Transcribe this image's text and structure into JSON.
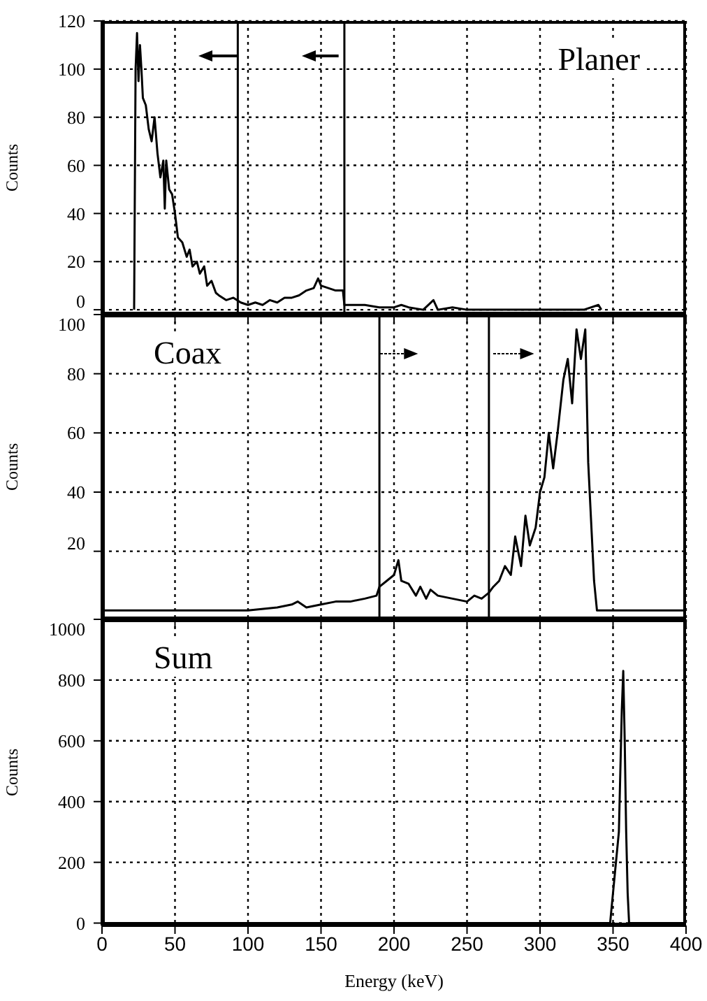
{
  "chart_data": [
    {
      "type": "line",
      "title": "Planer",
      "ylabel": "Counts",
      "xlim": [
        0,
        400
      ],
      "xticks": [
        0,
        50,
        100,
        150,
        200,
        250,
        300,
        350,
        400
      ],
      "ylim": [
        -2,
        120
      ],
      "yticks": [
        0,
        20,
        40,
        60,
        80,
        100,
        120
      ],
      "grid": true,
      "tick_labels": "y",
      "line_style": "solid",
      "marker": "none",
      "series": [
        {
          "color": "#000000",
          "x": [
            22,
            23,
            24,
            25,
            26,
            27,
            28,
            30,
            32,
            34,
            36,
            38,
            40,
            42,
            43,
            44,
            46,
            48,
            50,
            52,
            55,
            58,
            60,
            62,
            65,
            67,
            70,
            72,
            75,
            78,
            80,
            85,
            90,
            95,
            100,
            105,
            110,
            115,
            120,
            125,
            130,
            135,
            140,
            145,
            148,
            150,
            155,
            160,
            165,
            166,
            170,
            180,
            190,
            200,
            205,
            210,
            220,
            227,
            230,
            240,
            250,
            300,
            330,
            340,
            342
          ],
          "values": [
            0,
            100,
            115,
            95,
            110,
            100,
            88,
            85,
            75,
            70,
            80,
            65,
            55,
            62,
            42,
            62,
            50,
            48,
            40,
            30,
            28,
            22,
            25,
            18,
            20,
            15,
            18,
            10,
            12,
            7,
            6,
            4,
            5,
            3,
            2,
            3,
            2,
            4,
            3,
            5,
            5,
            6,
            8,
            9,
            13,
            10,
            9,
            8,
            8,
            2,
            2,
            2,
            1,
            1,
            2,
            1,
            0,
            4,
            0,
            1,
            0,
            0,
            0,
            2,
            0
          ]
        }
      ],
      "ref_lines": [
        {
          "axis": "x",
          "value": 93,
          "color": "#000000"
        },
        {
          "axis": "x",
          "value": 166,
          "color": "#000000"
        }
      ]
    },
    {
      "type": "line",
      "title": "Coax",
      "ylabel": "Counts",
      "xlim": [
        0,
        400
      ],
      "xticks": [
        0,
        50,
        100,
        150,
        200,
        250,
        300,
        350,
        400
      ],
      "ylim": [
        -3,
        100
      ],
      "yticks": [
        20,
        40,
        60,
        80,
        100
      ],
      "grid": true,
      "tick_labels": "y",
      "line_style": "solid",
      "marker": "none",
      "series": [
        {
          "color": "#000000",
          "x": [
            0,
            50,
            100,
            120,
            130,
            134,
            140,
            150,
            160,
            170,
            180,
            188,
            190,
            195,
            200,
            203,
            205,
            210,
            215,
            218,
            222,
            225,
            230,
            240,
            250,
            255,
            260,
            265,
            268,
            272,
            276,
            280,
            283,
            287,
            290,
            293,
            297,
            300,
            303,
            306,
            309,
            312,
            316,
            319,
            322,
            325,
            328,
            331,
            333,
            337,
            339,
            400
          ],
          "values": [
            0,
            0,
            0,
            1,
            2,
            3,
            1,
            2,
            3,
            3,
            4,
            5,
            8,
            10,
            12,
            17,
            10,
            9,
            5,
            8,
            4,
            7,
            5,
            4,
            3,
            5,
            4,
            6,
            8,
            10,
            15,
            12,
            25,
            15,
            32,
            22,
            28,
            40,
            45,
            60,
            48,
            60,
            78,
            85,
            70,
            95,
            85,
            95,
            50,
            10,
            0,
            0
          ]
        }
      ],
      "ref_lines": [
        {
          "axis": "x",
          "value": 190,
          "color": "#000000"
        },
        {
          "axis": "x",
          "value": 265,
          "color": "#000000"
        }
      ]
    },
    {
      "type": "line",
      "title": "Sum",
      "xlabel": "Energy (keV)",
      "ylabel": "Counts",
      "xlim": [
        0,
        400
      ],
      "xticks": [
        0,
        50,
        100,
        150,
        200,
        250,
        300,
        350,
        400
      ],
      "ylim": [
        -8,
        1000
      ],
      "yticks": [
        0,
        200,
        400,
        600,
        800,
        1000
      ],
      "grid": true,
      "line_style": "solid",
      "marker": "none",
      "series": [
        {
          "color": "#000000",
          "x": [
            0,
            348,
            350,
            352,
            354,
            355,
            356,
            357,
            358,
            359,
            360,
            361,
            400
          ],
          "values": [
            0,
            0,
            100,
            200,
            300,
            500,
            700,
            830,
            600,
            300,
            100,
            0,
            0
          ]
        }
      ]
    }
  ]
}
